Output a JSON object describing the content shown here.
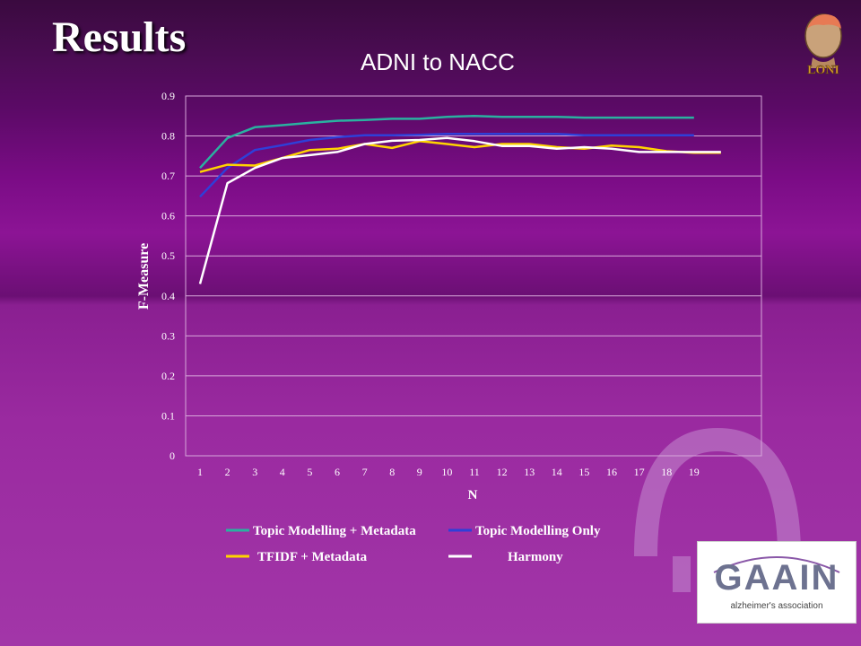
{
  "slide": {
    "title": "Results",
    "subtitle": "ADNI to NACC"
  },
  "logos": {
    "top_right": "LONI",
    "bottom_right": "GAAIN",
    "bottom_right_tagline": "alzheimer's association"
  },
  "colors": {
    "teal": "#2ab1a0",
    "blue": "#2f3fd8",
    "yellow": "#ffd400",
    "white": "#ffffff",
    "grid": "#d7a7da",
    "text": "#ffffff"
  },
  "chart_data": {
    "type": "line",
    "xlabel": "N",
    "ylabel": "F-Measure",
    "ylim": [
      0,
      0.9
    ],
    "yticks": [
      "0",
      "0.1",
      "0.2",
      "0.3",
      "0.4",
      "0.5",
      "0.6",
      "0.7",
      "0.8",
      "0.9"
    ],
    "categories": [
      "1",
      "2",
      "3",
      "4",
      "5",
      "6",
      "7",
      "8",
      "9",
      "10",
      "11",
      "12",
      "13",
      "14",
      "15",
      "16",
      "17",
      "18",
      "19"
    ],
    "grid": true,
    "legend_position": "bottom",
    "series": [
      {
        "name": "Topic Modelling + Metadata",
        "color": "#2ab1a0",
        "values": [
          0.72,
          0.795,
          0.822,
          0.827,
          0.833,
          0.838,
          0.84,
          0.843,
          0.843,
          0.848,
          0.85,
          0.848,
          0.848,
          0.848,
          0.846,
          0.846,
          0.846,
          0.846,
          0.846
        ]
      },
      {
        "name": "Topic Modelling Only",
        "color": "#2f3fd8",
        "values": [
          0.648,
          0.72,
          0.765,
          0.777,
          0.79,
          0.797,
          0.802,
          0.802,
          0.803,
          0.805,
          0.805,
          0.805,
          0.805,
          0.805,
          0.802,
          0.802,
          0.802,
          0.802,
          0.802
        ]
      },
      {
        "name": "TFIDF + Metadata",
        "color": "#ffd400",
        "values": [
          0.71,
          0.728,
          0.726,
          0.745,
          0.765,
          0.768,
          0.78,
          0.77,
          0.787,
          0.78,
          0.772,
          0.78,
          0.78,
          0.772,
          0.768,
          0.776,
          0.772,
          0.762,
          0.758
        ]
      },
      {
        "name": "Harmony",
        "color": "#ffffff",
        "values": [
          0.43,
          0.682,
          0.72,
          0.745,
          0.752,
          0.76,
          0.78,
          0.788,
          0.79,
          0.795,
          0.787,
          0.775,
          0.775,
          0.768,
          0.772,
          0.768,
          0.76,
          0.76,
          0.76
        ]
      }
    ]
  }
}
